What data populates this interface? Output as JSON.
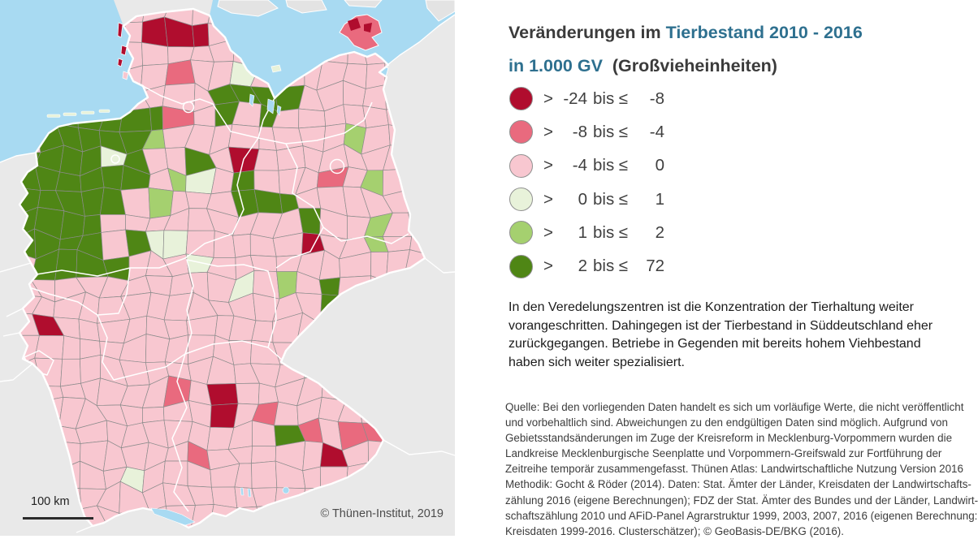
{
  "title": {
    "line1_prefix": "Veränderungen im",
    "line1_highlight": "Tierbestand 2010 - 2016",
    "line2_highlight": "in 1.000 GV",
    "line2_suffix": "(Großvieheinheiten)"
  },
  "legend": {
    "gt_symbol": ">",
    "bis_symbol": "bis ≤",
    "items": [
      {
        "from": "-24",
        "to": "-8",
        "color": "#b00d2e"
      },
      {
        "from": "-8",
        "to": "-4",
        "color": "#e96a7e"
      },
      {
        "from": "-4",
        "to": "0",
        "color": "#f8c7d0"
      },
      {
        "from": "0",
        "to": "1",
        "color": "#e8f2da"
      },
      {
        "from": "1",
        "to": "2",
        "color": "#a5d06f"
      },
      {
        "from": "2",
        "to": "72",
        "color": "#4f8615"
      }
    ]
  },
  "description_lines": [
    "In den Veredelungszentren ist die Konzentration der Tierhaltung weiter",
    "vorangeschritten. Dahingegen ist der Tierbestand in Süddeutschland eher",
    "zurückgegangen. Betriebe in Gegenden mit bereits hohem Viehbestand",
    "haben sich weiter spezialisiert."
  ],
  "source_lines": [
    "Quelle: Bei den vorliegenden Daten handelt es sich um vorläufige Werte, die nicht veröffentlicht",
    "und vorbehaltlich sind. Abweichungen zu den endgültigen Daten sind möglich. Aufgrund von",
    "Gebietsstandsänderungen im Zuge der Kreisreform in Mecklenburg-Vorpommern wurden die",
    "Landkreise Mecklenburgische Seenplatte und Vorpommern-Greifswald zur Fortführung der",
    "Zeitreihe temporär zusammengefasst. Thünen Atlas: Landwirtschaftliche Nutzung Version 2016",
    "Methodik: Gocht & Röder (2014). Daten: Stat. Ämter der Länder, Kreisdaten der Landwirtschafts-",
    "zählung 2016 (eigene Berechnungen); FDZ der Stat. Ämter des Bundes und der Länder, Landwirt-",
    "schaftszählung 2010 und AFiD-Panel Agrarstruktur 1999, 2003, 2007, 2016 (eigenen Berechnung:",
    "Kreisdaten 1999-2016. Clusterschätzer); © GeoBasis-DE/BKG (2016)."
  ],
  "map": {
    "scale_label": "100 km",
    "copyright": "© Thünen-Institut, 2019",
    "colors": {
      "background": "#e9e9e9",
      "water": "#a8daf2",
      "foreign_land": "#e3e3e3",
      "boundary": "#ffffff",
      "district_border": "#8c8c8c",
      "accent": "#2e708f"
    }
  }
}
